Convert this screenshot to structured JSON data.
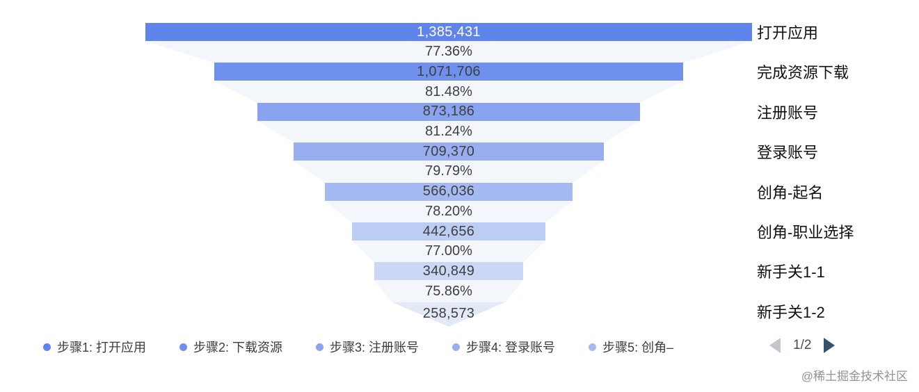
{
  "chart_data": {
    "type": "funnel",
    "title": "",
    "legend_position": "bottom",
    "steps": [
      {
        "label": "打开应用",
        "value": 1385431,
        "value_text": "1,385,431"
      },
      {
        "label": "完成资源下载",
        "value": 1071706,
        "value_text": "1,071,706"
      },
      {
        "label": "注册账号",
        "value": 873186,
        "value_text": "873,186"
      },
      {
        "label": "登录账号",
        "value": 709370,
        "value_text": "709,370"
      },
      {
        "label": "创角-起名",
        "value": 566036,
        "value_text": "566,036"
      },
      {
        "label": "创角-职业选择",
        "value": 442656,
        "value_text": "442,656"
      },
      {
        "label": "新手关1-1",
        "value": 340849,
        "value_text": "340,849"
      },
      {
        "label": "新手关1-2",
        "value": 258573,
        "value_text": "258,573"
      }
    ],
    "conversion_rates": [
      "77.36%",
      "81.48%",
      "81.24%",
      "79.79%",
      "78.20%",
      "77.00%",
      "75.86%"
    ],
    "colors": {
      "bars": [
        "#5f84ec",
        "#6f90ec",
        "#8aa3ee",
        "#98aef1",
        "#a5baf2",
        "#bccdf4",
        "#ccd7f6"
      ],
      "tip": "#e4e9f7",
      "connector": "#f3f6fa",
      "value_text_first_bar": "#ffffff",
      "value_text": "#3f3f3f"
    }
  },
  "legend": {
    "items": [
      {
        "label": "步骤1: 打开应用",
        "color": "#5f84ec"
      },
      {
        "label": "步骤2: 下载资源",
        "color": "#6f90ec"
      },
      {
        "label": "步骤3: 注册账号",
        "color": "#8aa3ee"
      },
      {
        "label": "步骤4: 登录账号",
        "color": "#98aef1"
      },
      {
        "label": "步骤5: 创角–",
        "color": "#a5baf2"
      }
    ],
    "pagination": {
      "current": "1/2"
    }
  },
  "watermark": "@稀土掘金技术社区"
}
